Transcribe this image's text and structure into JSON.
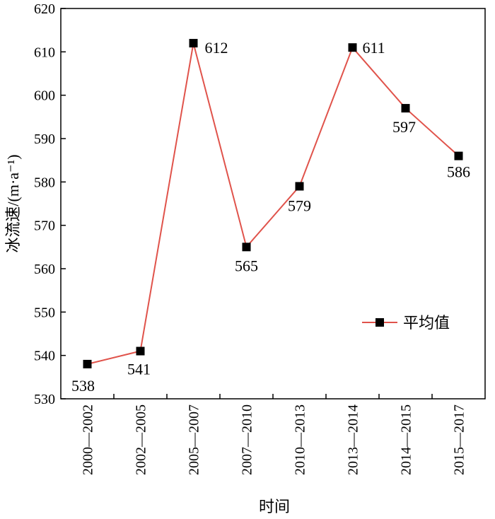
{
  "chart_data": {
    "type": "line",
    "categories": [
      "2000—2002",
      "2002—2005",
      "2005—2007",
      "2007—2010",
      "2010—2013",
      "2013—2014",
      "2014—2015",
      "2015—2017"
    ],
    "series": [
      {
        "name": "平均值",
        "values": [
          538,
          541,
          612,
          565,
          579,
          611,
          597,
          586
        ]
      }
    ],
    "xlabel": "时间",
    "ylabel": "冰流速/(m·a⁻¹)",
    "ylim": [
      530,
      620
    ],
    "yticks": [
      530,
      540,
      550,
      560,
      570,
      580,
      590,
      600,
      610,
      620
    ],
    "data_labels": [
      "538",
      "541",
      "612",
      "565",
      "579",
      "611",
      "597",
      "586"
    ],
    "grid": false,
    "legend_position": "lower-right",
    "colors": {
      "line": "#e0534b",
      "marker": "#000000",
      "axis": "#000000"
    }
  }
}
